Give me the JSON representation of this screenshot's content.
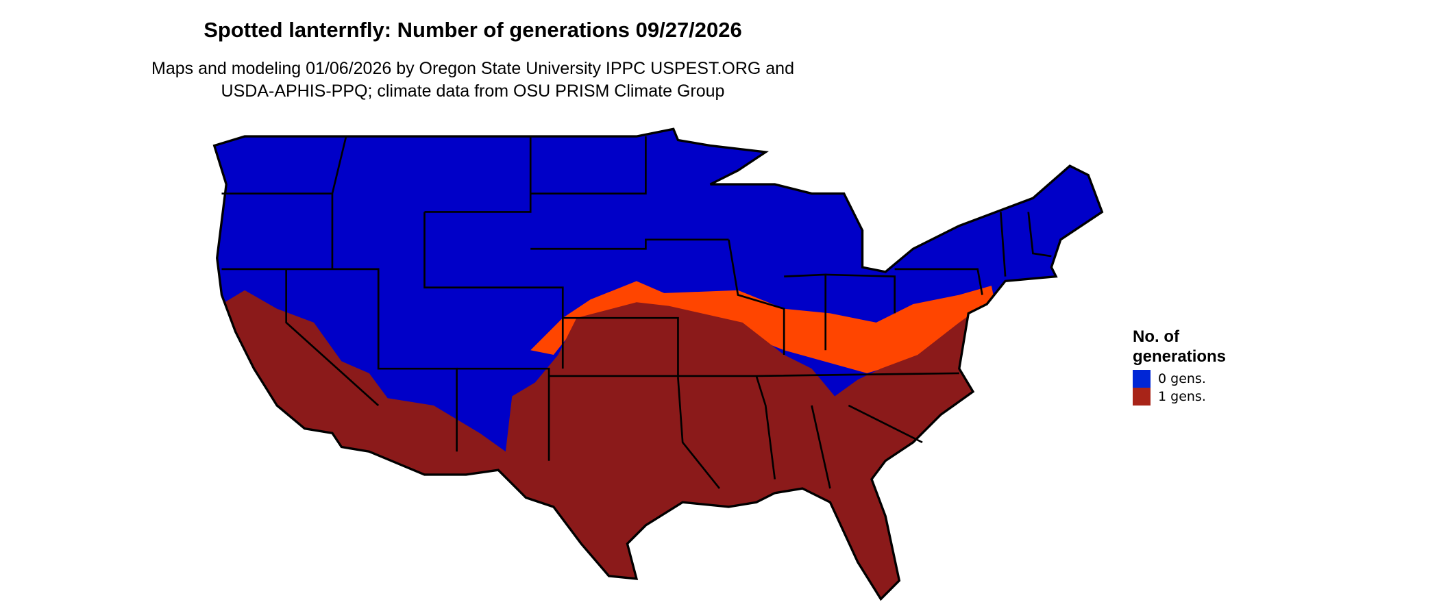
{
  "title": "Spotted lanternfly: Number of generations 09/27/2026",
  "subtitle_line1": "Maps and modeling 01/06/2026 by Oregon State University IPPC USPEST.ORG and",
  "subtitle_line2": "USDA-APHIS-PPQ; climate data from OSU PRISM Climate Group",
  "map": {
    "region": "Contiguous United States",
    "colors": {
      "zero_gens": "#0000c8",
      "one_gen": "#8b1a1a",
      "transition": "#ff4500",
      "state_borders": "#000000"
    }
  },
  "legend": {
    "title_line1": "No. of",
    "title_line2": "generations",
    "items": [
      {
        "label": "0 gens.",
        "color": "#0026d6"
      },
      {
        "label": "1 gens.",
        "color": "#a82418"
      }
    ]
  }
}
